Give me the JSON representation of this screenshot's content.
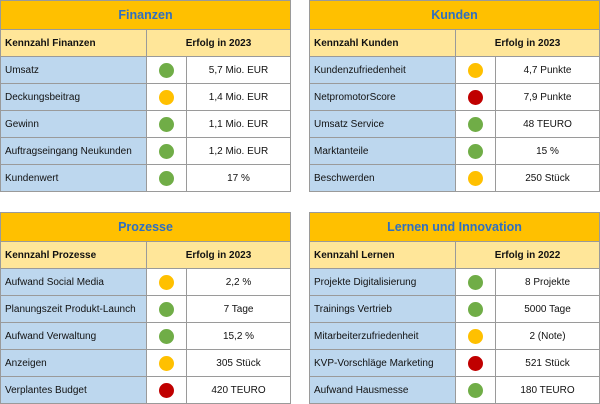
{
  "panels": [
    {
      "title": "Finanzen",
      "header_label": "Kennzahl Finanzen",
      "header_value": "Erfolg in 2023",
      "rows": [
        {
          "label": "Umsatz",
          "status": "green",
          "value": "5,7 Mio. EUR"
        },
        {
          "label": "Deckungsbeitrag",
          "status": "yellow",
          "value": "1,4 Mio. EUR"
        },
        {
          "label": "Gewinn",
          "status": "green",
          "value": "1,1 Mio. EUR"
        },
        {
          "label": "Auftragseingang Neukunden",
          "status": "green",
          "value": "1,2 Mio. EUR"
        },
        {
          "label": "Kundenwert",
          "status": "green",
          "value": "17 %"
        }
      ]
    },
    {
      "title": "Kunden",
      "header_label": "Kennzahl Kunden",
      "header_value": "Erfolg in 2023",
      "rows": [
        {
          "label": "Kundenzufriedenheit",
          "status": "yellow",
          "value": "4,7 Punkte"
        },
        {
          "label": "NetpromotorScore",
          "status": "red",
          "value": "7,9 Punkte"
        },
        {
          "label": "Umsatz Service",
          "status": "green",
          "value": "48 TEURO"
        },
        {
          "label": "Marktanteile",
          "status": "green",
          "value": "15 %"
        },
        {
          "label": "Beschwerden",
          "status": "yellow",
          "value": "250 Stück"
        }
      ]
    },
    {
      "title": "Prozesse",
      "header_label": "Kennzahl Prozesse",
      "header_value": "Erfolg in 2023",
      "rows": [
        {
          "label": "Aufwand Social Media",
          "status": "yellow",
          "value": "2,2 %"
        },
        {
          "label": "Planungszeit Produkt-Launch",
          "status": "green",
          "value": "7 Tage"
        },
        {
          "label": "Aufwand Verwaltung",
          "status": "green",
          "value": "15,2 %"
        },
        {
          "label": "Anzeigen",
          "status": "yellow",
          "value": "305 Stück"
        },
        {
          "label": "Verplantes Budget",
          "status": "red",
          "value": "420 TEURO"
        }
      ]
    },
    {
      "title": "Lernen und Innovation",
      "header_label": "Kennzahl Lernen",
      "header_value": "Erfolg in 2022",
      "rows": [
        {
          "label": "Projekte Digitalisierung",
          "status": "green",
          "value": "8 Projekte"
        },
        {
          "label": "Trainings Vertrieb",
          "status": "green",
          "value": "5000 Tage"
        },
        {
          "label": "Mitarbeiterzufriedenheit",
          "status": "yellow",
          "value": "2 (Note)"
        },
        {
          "label": "KVP-Vorschläge Marketing",
          "status": "red",
          "value": "521 Stück"
        },
        {
          "label": "Aufwand Hausmesse",
          "status": "green",
          "value": "180 TEURO"
        }
      ]
    }
  ],
  "colors": {
    "title_bg": "#ffc000",
    "title_text": "#2f6fc0",
    "header_bg": "#ffe699",
    "label_bg": "#bdd7ee",
    "green": "#70ad47",
    "yellow": "#ffc000",
    "red": "#c00000"
  }
}
